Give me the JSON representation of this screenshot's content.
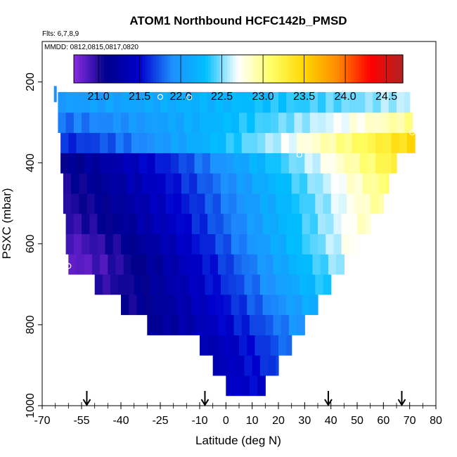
{
  "chart_data": {
    "type": "heatmap",
    "title": "ATOM1 Northbound HCFC142b_PMSD",
    "flights_note": "Flts: 6,7,8,9",
    "dates_note": "MMDD: 0812,0815,0817,0820",
    "xlabel": "Latitude (deg N)",
    "ylabel": "PSXC (mbar)",
    "xlim": [
      -70,
      80
    ],
    "ylim": [
      1000,
      100
    ],
    "x_ticks": [
      -70,
      -55,
      -40,
      -25,
      -10,
      0,
      10,
      20,
      30,
      40,
      50,
      60,
      70,
      80
    ],
    "x_tick_labels": [
      "-70",
      "-55",
      "-40",
      "-25",
      "-10",
      "0",
      "10",
      "20",
      "30",
      "40",
      "50",
      "60",
      "70",
      "80"
    ],
    "y_ticks": [
      200,
      400,
      600,
      800,
      1000
    ],
    "y_tick_labels": [
      "200",
      "400",
      "600",
      "800",
      "1000"
    ],
    "colorbar": {
      "min": 20.7,
      "max": 24.7,
      "ticks": [
        21.0,
        21.5,
        22.0,
        22.5,
        23.0,
        23.5,
        24.0,
        24.5
      ],
      "tick_labels": [
        "21.0",
        "21.5",
        "22.0",
        "22.5",
        "23.0",
        "23.5",
        "24.0",
        "24.5"
      ],
      "colors": [
        "#8a2be2",
        "#00008b",
        "#0000cd",
        "#1e90ff",
        "#00bfff",
        "#ffffff",
        "#ffff66",
        "#ffd700",
        "#ff8c00",
        "#ff0000",
        "#b22222"
      ]
    },
    "layers": [
      {
        "p": 950,
        "lat_min": 0,
        "lat_max": 15,
        "v0": 21.45,
        "v1": 21.5
      },
      {
        "p": 900,
        "lat_min": -5,
        "lat_max": 20,
        "v0": 21.35,
        "v1": 21.7
      },
      {
        "p": 850,
        "lat_min": -10,
        "lat_max": 25,
        "v0": 21.3,
        "v1": 21.85
      },
      {
        "p": 800,
        "lat_min": -30,
        "lat_max": 30,
        "v0": 21.15,
        "v1": 22.0
      },
      {
        "p": 750,
        "lat_min": -40,
        "lat_max": 35,
        "v0": 21.05,
        "v1": 22.2
      },
      {
        "p": 700,
        "lat_min": -50,
        "lat_max": 40,
        "v0": 20.95,
        "v1": 22.4
      },
      {
        "p": 650,
        "lat_min": -60,
        "lat_max": 45,
        "v0": 20.8,
        "v1": 22.6
      },
      {
        "p": 600,
        "lat_min": -61,
        "lat_max": 50,
        "v0": 20.85,
        "v1": 22.8
      },
      {
        "p": 550,
        "lat_min": -61,
        "lat_max": 55,
        "v0": 20.95,
        "v1": 22.9
      },
      {
        "p": 500,
        "lat_min": -62,
        "lat_max": 60,
        "v0": 21.0,
        "v1": 23.0
      },
      {
        "p": 450,
        "lat_min": -62,
        "lat_max": 62,
        "v0": 21.05,
        "v1": 23.1
      },
      {
        "p": 400,
        "lat_min": -63,
        "lat_max": 65,
        "v0": 21.1,
        "v1": 23.3
      },
      {
        "p": 350,
        "lat_min": -63,
        "lat_max": 72,
        "v0": 21.6,
        "v1": 23.5
      },
      {
        "p": 300,
        "lat_min": -64,
        "lat_max": 71,
        "v0": 21.8,
        "v1": 23.0
      },
      {
        "p": 250,
        "lat_min": -64,
        "lat_max": 70,
        "v0": 22.0,
        "v1": 22.6
      }
    ],
    "stray_cell": {
      "lat": -65,
      "p": 190,
      "value": 21.9
    },
    "circle_markers": [
      {
        "lat": -25,
        "p": 237
      },
      {
        "lat": -14,
        "p": 238
      },
      {
        "lat": 28,
        "p": 380
      },
      {
        "lat": -60,
        "p": 655
      },
      {
        "lat": 71,
        "p": 325
      },
      {
        "lat": 10,
        "p": 985
      }
    ],
    "arrow_markers": [
      -53,
      -8,
      39,
      67
    ]
  }
}
